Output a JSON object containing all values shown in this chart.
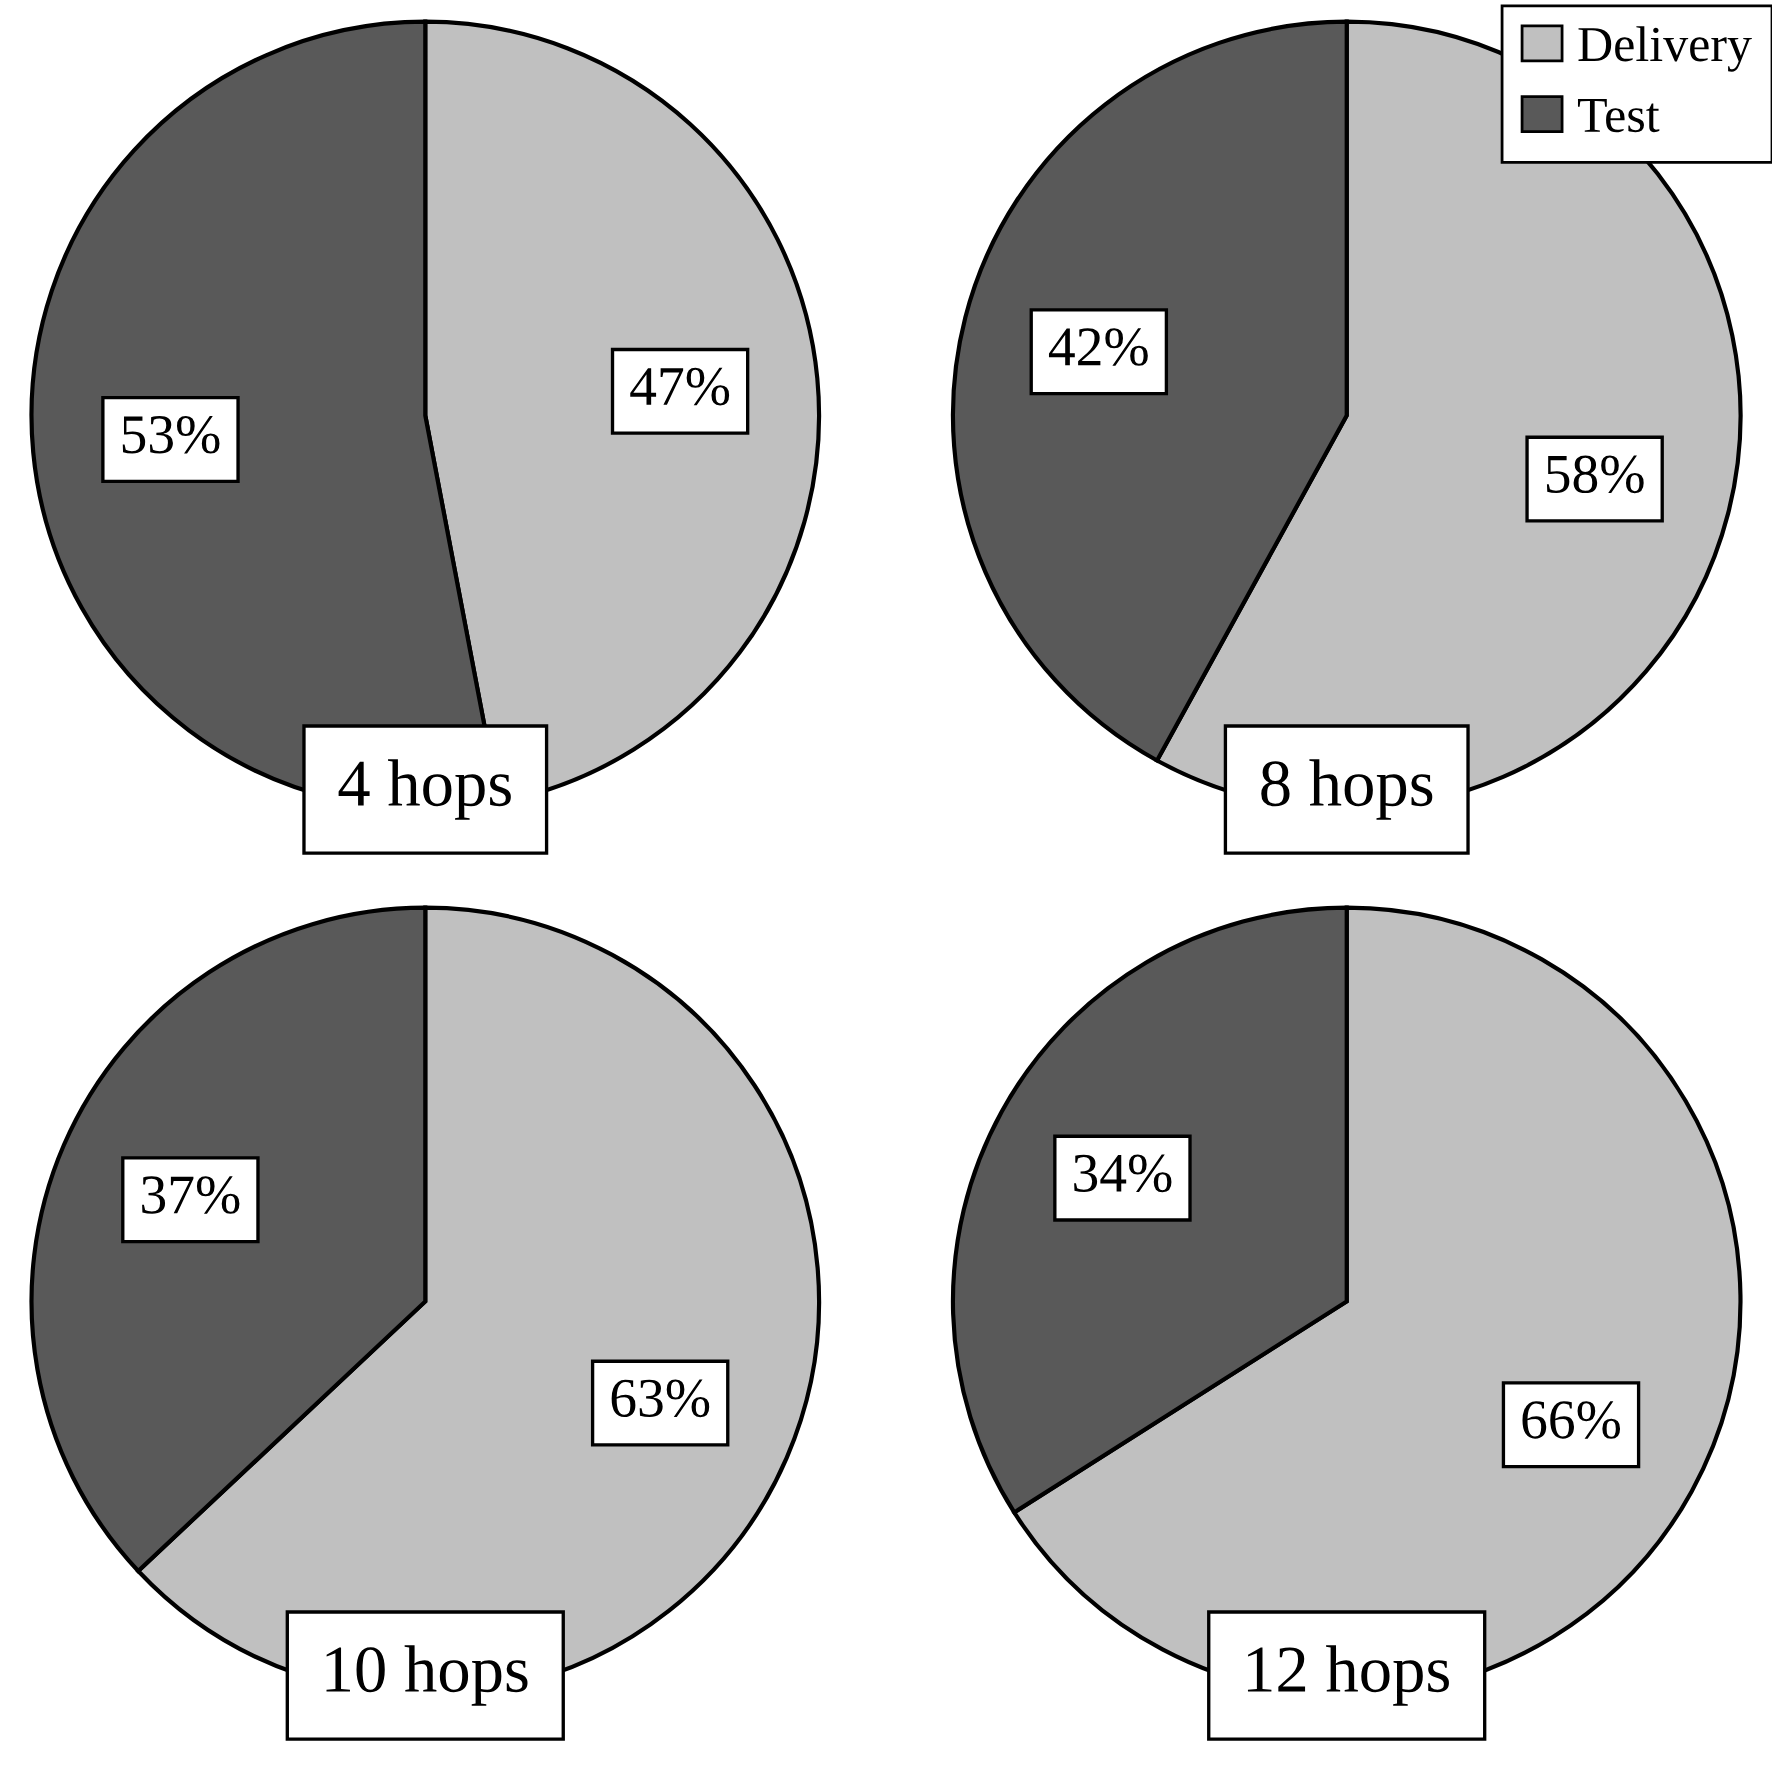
{
  "chart_data": [
    {
      "type": "pie",
      "title": "4 hops",
      "categories": [
        null,
        null
      ],
      "values": [
        47,
        53
      ],
      "colors": [
        "#c0c0c0",
        "#595959"
      ],
      "value_labels": [
        "47%",
        "53%"
      ]
    },
    {
      "type": "pie",
      "title": "8 hops",
      "categories": [
        "Delivery",
        "Test"
      ],
      "values": [
        58,
        42
      ],
      "colors": [
        "#c0c0c0",
        "#595959"
      ],
      "value_labels": [
        "58%",
        "42%"
      ],
      "legend": "top right"
    },
    {
      "type": "pie",
      "title": "10 hops",
      "categories": [
        null,
        null
      ],
      "values": [
        63,
        37
      ],
      "colors": [
        "#c0c0c0",
        "#595959"
      ],
      "value_labels": [
        "63%",
        "37%"
      ]
    },
    {
      "type": "pie",
      "title": "12 hops",
      "categories": [
        null,
        null
      ],
      "values": [
        66,
        34
      ],
      "colors": [
        "#c0c0c0",
        "#595959"
      ],
      "value_labels": [
        "66%",
        "34%"
      ]
    }
  ]
}
